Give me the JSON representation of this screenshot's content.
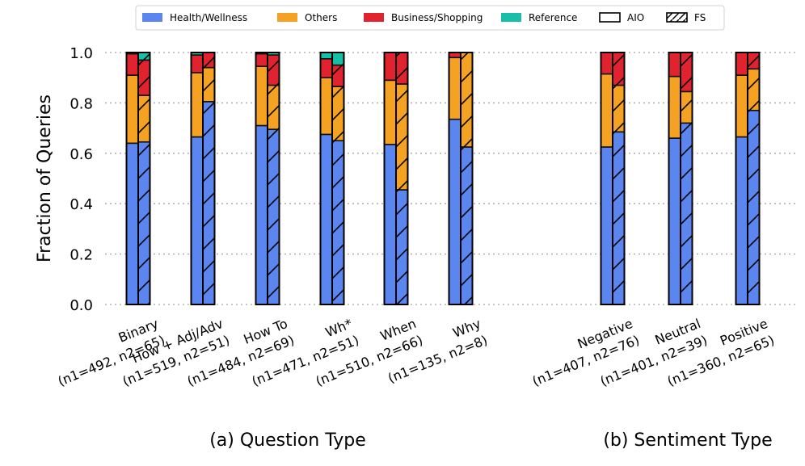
{
  "chart_data": {
    "type": "bar",
    "ylabel": "Fraction of Queries",
    "ylim": [
      0,
      1.0
    ],
    "yticks": [
      "0.0",
      "0.2",
      "0.4",
      "0.6",
      "0.8",
      "1.0"
    ],
    "grid": "horizontal dotted",
    "legend": {
      "position": "top",
      "entries": [
        {
          "label": "Health/Wellness",
          "color": "#5b86ef",
          "kind": "category"
        },
        {
          "label": "Others",
          "color": "#f5a121",
          "kind": "category"
        },
        {
          "label": "Business/Shopping",
          "color": "#e1232f",
          "kind": "category"
        },
        {
          "label": "Reference",
          "color": "#17bfa6",
          "kind": "category"
        },
        {
          "label": "AIO",
          "kind": "plain"
        },
        {
          "label": "FS",
          "kind": "hatched"
        }
      ]
    },
    "colors": {
      "health": "#5b86ef",
      "others": "#f5a121",
      "business": "#e1232f",
      "reference": "#17bfa6"
    },
    "panels": [
      {
        "caption": "(a) Question Type",
        "groups": [
          {
            "line1": "Binary",
            "line2": "(n1=492, n2=65)",
            "aio": {
              "health": 0.64,
              "others": 0.27,
              "business": 0.085,
              "reference": 0.005
            },
            "fs": {
              "health": 0.645,
              "others": 0.185,
              "business": 0.14,
              "reference": 0.03
            }
          },
          {
            "line1": "How + Adj/Adv",
            "line2": "(n1=519, n2=51)",
            "aio": {
              "health": 0.665,
              "others": 0.255,
              "business": 0.07,
              "reference": 0.01
            },
            "fs": {
              "health": 0.805,
              "others": 0.135,
              "business": 0.06,
              "reference": 0.0
            }
          },
          {
            "line1": "How To",
            "line2": "(n1=484, n2=69)",
            "aio": {
              "health": 0.71,
              "others": 0.235,
              "business": 0.05,
              "reference": 0.005
            },
            "fs": {
              "health": 0.695,
              "others": 0.175,
              "business": 0.12,
              "reference": 0.01
            }
          },
          {
            "line1": "Wh*",
            "line2": "(n1=471, n2=51)",
            "aio": {
              "health": 0.675,
              "others": 0.225,
              "business": 0.075,
              "reference": 0.025
            },
            "fs": {
              "health": 0.65,
              "others": 0.215,
              "business": 0.085,
              "reference": 0.05
            }
          },
          {
            "line1": "When",
            "line2": "(n1=510, n2=66)",
            "aio": {
              "health": 0.635,
              "others": 0.255,
              "business": 0.11,
              "reference": 0.0
            },
            "fs": {
              "health": 0.455,
              "others": 0.42,
              "business": 0.125,
              "reference": 0.0
            }
          },
          {
            "line1": "Why",
            "line2": "(n1=135, n2=8)",
            "aio": {
              "health": 0.735,
              "others": 0.245,
              "business": 0.02,
              "reference": 0.0
            },
            "fs": {
              "health": 0.625,
              "others": 0.375,
              "business": 0.0,
              "reference": 0.0
            }
          }
        ]
      },
      {
        "caption": "(b) Sentiment Type",
        "groups": [
          {
            "line1": "Negative",
            "line2": "(n1=407, n2=76)",
            "aio": {
              "health": 0.625,
              "others": 0.29,
              "business": 0.085,
              "reference": 0.0
            },
            "fs": {
              "health": 0.685,
              "others": 0.185,
              "business": 0.13,
              "reference": 0.0
            }
          },
          {
            "line1": "Neutral",
            "line2": "(n1=401, n2=39)",
            "aio": {
              "health": 0.66,
              "others": 0.245,
              "business": 0.095,
              "reference": 0.0
            },
            "fs": {
              "health": 0.72,
              "others": 0.125,
              "business": 0.155,
              "reference": 0.0
            }
          },
          {
            "line1": "Positive",
            "line2": "(n1=360, n2=65)",
            "aio": {
              "health": 0.665,
              "others": 0.245,
              "business": 0.09,
              "reference": 0.0
            },
            "fs": {
              "health": 0.77,
              "others": 0.165,
              "business": 0.065,
              "reference": 0.0
            }
          }
        ]
      }
    ]
  }
}
